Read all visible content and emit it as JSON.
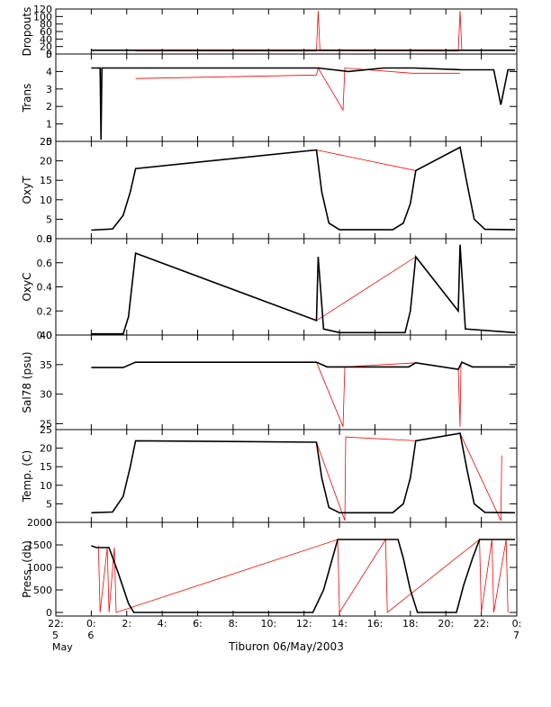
{
  "chart_data": {
    "type": "line",
    "title": "",
    "xlabel": "Tiburon 06/May/2003",
    "x_unit": "hour of 6 May 2003",
    "xlim": [
      -2,
      24
    ],
    "x_ticks": [
      {
        "value": -2,
        "lines": [
          "22:",
          "5",
          "May"
        ]
      },
      {
        "value": 0,
        "lines": [
          "0:",
          "6"
        ]
      },
      {
        "value": 2,
        "lines": [
          "2:"
        ]
      },
      {
        "value": 4,
        "lines": [
          "4:"
        ]
      },
      {
        "value": 6,
        "lines": [
          "6:"
        ]
      },
      {
        "value": 8,
        "lines": [
          "8:"
        ]
      },
      {
        "value": 10,
        "lines": [
          "10:"
        ]
      },
      {
        "value": 12,
        "lines": [
          "12:"
        ]
      },
      {
        "value": 14,
        "lines": [
          "14:"
        ]
      },
      {
        "value": 16,
        "lines": [
          "16:"
        ]
      },
      {
        "value": 18,
        "lines": [
          "18:"
        ]
      },
      {
        "value": 20,
        "lines": [
          "20:"
        ]
      },
      {
        "value": 22,
        "lines": [
          "22:"
        ]
      },
      {
        "value": 24,
        "lines": [
          "0:",
          "7"
        ]
      }
    ],
    "colors": {
      "measured": "#000000",
      "gap": "#ff0000",
      "axis": "#000000"
    },
    "panels": [
      {
        "name": "dropouts",
        "ylabel": "Dropouts",
        "ylim": [
          0,
          120
        ],
        "yticks": [
          "0",
          "20",
          "40",
          "60",
          "80",
          "100",
          "120"
        ],
        "measured": [
          [
            0,
            10
          ],
          [
            2.5,
            10
          ],
          [
            12.8,
            10
          ],
          [
            20.9,
            10
          ],
          [
            23.9,
            10
          ]
        ],
        "gap": [
          [
            2.5,
            8
          ],
          [
            12.7,
            8
          ],
          [
            12.8,
            115
          ],
          [
            12.9,
            9
          ],
          [
            20.7,
            8
          ],
          [
            20.8,
            115
          ],
          [
            20.9,
            9
          ]
        ]
      },
      {
        "name": "trans",
        "ylabel": "Trans",
        "ylim": [
          0,
          5
        ],
        "yticks": [
          "0",
          "1",
          "2",
          "3",
          "4",
          "5"
        ],
        "measured": [
          [
            0,
            4.2
          ],
          [
            0.5,
            4.2
          ],
          [
            0.55,
            0.1
          ],
          [
            0.6,
            4.2
          ],
          [
            2.5,
            4.2
          ],
          [
            12.8,
            4.2
          ],
          [
            14.5,
            4.0
          ],
          [
            16.5,
            4.2
          ],
          [
            18.2,
            4.2
          ],
          [
            20.9,
            4.1
          ],
          [
            22.7,
            4.1
          ],
          [
            23.1,
            2.1
          ],
          [
            23.5,
            4.1
          ],
          [
            23.9,
            4.1
          ]
        ],
        "gap": [
          [
            2.5,
            3.6
          ],
          [
            12.7,
            3.8
          ],
          [
            12.8,
            4.2
          ],
          [
            14.2,
            1.8
          ],
          [
            14.3,
            4.2
          ],
          [
            18.1,
            3.9
          ],
          [
            20.8,
            3.9
          ]
        ]
      },
      {
        "name": "oxyt",
        "ylabel": "OxyT",
        "ylim": [
          0,
          25
        ],
        "yticks": [
          "0",
          "5",
          "10",
          "15",
          "20",
          "25"
        ],
        "measured": [
          [
            0,
            2.2
          ],
          [
            1.2,
            2.5
          ],
          [
            1.8,
            6
          ],
          [
            2.2,
            12
          ],
          [
            2.5,
            18
          ],
          [
            12.7,
            22.8
          ],
          [
            13.0,
            12
          ],
          [
            13.4,
            4
          ],
          [
            14.0,
            2.3
          ],
          [
            17.0,
            2.3
          ],
          [
            17.6,
            4
          ],
          [
            18.0,
            9
          ],
          [
            18.3,
            17.5
          ],
          [
            20.8,
            23.5
          ],
          [
            21.2,
            14
          ],
          [
            21.6,
            5
          ],
          [
            22.2,
            2.4
          ],
          [
            23.9,
            2.3
          ]
        ],
        "gap": [
          [
            2.5,
            18
          ],
          [
            12.7,
            22.8
          ],
          [
            18.3,
            17.5
          ],
          [
            20.8,
            23.5
          ]
        ]
      },
      {
        "name": "oxyc",
        "ylabel": "OxyC",
        "ylim": [
          0,
          0.8
        ],
        "yticks": [
          "0.0",
          "0.2",
          "0.4",
          "0.6",
          "0.8"
        ],
        "measured": [
          [
            0,
            0.01
          ],
          [
            1.8,
            0.01
          ],
          [
            2.1,
            0.15
          ],
          [
            2.5,
            0.68
          ],
          [
            12.7,
            0.12
          ],
          [
            12.8,
            0.65
          ],
          [
            13.1,
            0.05
          ],
          [
            14,
            0.02
          ],
          [
            17.7,
            0.02
          ],
          [
            18.0,
            0.2
          ],
          [
            18.3,
            0.65
          ],
          [
            20.7,
            0.2
          ],
          [
            20.8,
            0.75
          ],
          [
            21.1,
            0.05
          ],
          [
            23.9,
            0.02
          ]
        ],
        "gap": [
          [
            2.5,
            0.68
          ],
          [
            12.7,
            0.12
          ],
          [
            18.3,
            0.65
          ],
          [
            20.7,
            0.2
          ]
        ]
      },
      {
        "name": "sal78",
        "ylabel": "Sal78 (psu)",
        "ylim": [
          24,
          40
        ],
        "yticks": [
          "25",
          "30",
          "35",
          "40"
        ],
        "measured": [
          [
            0,
            34.5
          ],
          [
            1.8,
            34.5
          ],
          [
            2.5,
            35.4
          ],
          [
            12.7,
            35.4
          ],
          [
            13.3,
            34.6
          ],
          [
            17.9,
            34.6
          ],
          [
            18.3,
            35.3
          ],
          [
            20.7,
            34.2
          ],
          [
            20.9,
            35.4
          ],
          [
            21.5,
            34.6
          ],
          [
            23.9,
            34.6
          ]
        ],
        "gap": [
          [
            2.5,
            35.4
          ],
          [
            12.7,
            35.4
          ],
          [
            14.2,
            24.5
          ],
          [
            14.3,
            34.6
          ],
          [
            18.3,
            35.3
          ],
          [
            20.7,
            34.2
          ],
          [
            20.8,
            24.5
          ],
          [
            20.85,
            35
          ]
        ]
      },
      {
        "name": "temp",
        "ylabel": "Temp. (C)",
        "ylim": [
          0,
          25
        ],
        "yticks": [
          "0",
          "5",
          "10",
          "15",
          "20",
          "25"
        ],
        "measured": [
          [
            0,
            2.6
          ],
          [
            1.2,
            2.8
          ],
          [
            1.8,
            7
          ],
          [
            2.2,
            15
          ],
          [
            2.5,
            22
          ],
          [
            12.7,
            21.6
          ],
          [
            13.0,
            12
          ],
          [
            13.4,
            4
          ],
          [
            14.0,
            2.6
          ],
          [
            17.0,
            2.6
          ],
          [
            17.6,
            5
          ],
          [
            18.0,
            12
          ],
          [
            18.3,
            22
          ],
          [
            20.8,
            24
          ],
          [
            21.2,
            14
          ],
          [
            21.6,
            5
          ],
          [
            22.2,
            2.7
          ],
          [
            23.9,
            2.6
          ]
        ],
        "gap": [
          [
            2.5,
            22
          ],
          [
            12.7,
            21.6
          ],
          [
            14.3,
            0.5
          ],
          [
            14.35,
            23
          ],
          [
            18.3,
            22
          ],
          [
            20.8,
            24
          ],
          [
            23.1,
            0.5
          ],
          [
            23.15,
            18
          ]
        ]
      },
      {
        "name": "press",
        "ylabel": "Press. (db)",
        "ylim": [
          -80,
          2000
        ],
        "yticks": [
          "0",
          "500",
          "1000",
          "1500",
          "2000"
        ],
        "measured": [
          [
            0,
            1480
          ],
          [
            0.3,
            1440
          ],
          [
            1.0,
            1440
          ],
          [
            1.5,
            900
          ],
          [
            2.1,
            200
          ],
          [
            2.4,
            0
          ],
          [
            12.5,
            0
          ],
          [
            13.1,
            500
          ],
          [
            13.6,
            1200
          ],
          [
            13.9,
            1620
          ],
          [
            17.3,
            1620
          ],
          [
            17.6,
            1200
          ],
          [
            18.0,
            500
          ],
          [
            18.4,
            0
          ],
          [
            20.6,
            0
          ],
          [
            21.0,
            600
          ],
          [
            21.5,
            1200
          ],
          [
            21.9,
            1620
          ],
          [
            23.9,
            1620
          ]
        ],
        "gap": [
          [
            0.4,
            1480
          ],
          [
            0.5,
            0
          ],
          [
            0.9,
            1440
          ],
          [
            1.0,
            0
          ],
          [
            1.3,
            1440
          ],
          [
            1.4,
            0
          ],
          [
            13.9,
            1620
          ],
          [
            14.0,
            0
          ],
          [
            16.6,
            1620
          ],
          [
            16.7,
            0
          ],
          [
            21.9,
            1620
          ],
          [
            22.0,
            0
          ],
          [
            22.6,
            1620
          ],
          [
            22.7,
            0
          ],
          [
            23.4,
            1620
          ],
          [
            23.5,
            0
          ]
        ]
      }
    ]
  }
}
